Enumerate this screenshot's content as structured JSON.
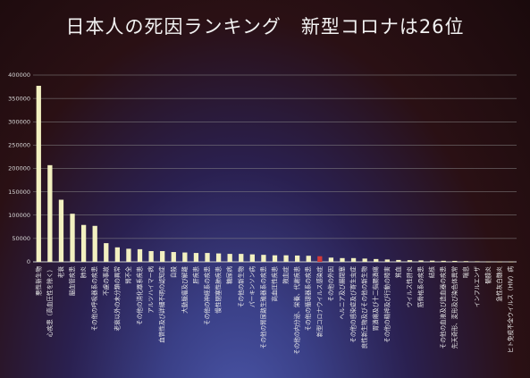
{
  "chart_data": {
    "type": "bar",
    "title": "日本人の死因ランキング　新型コロナは26位",
    "xlabel": "",
    "ylabel": "",
    "ylim": [
      0,
      400000
    ],
    "yticks": [
      0,
      50000,
      100000,
      150000,
      200000,
      250000,
      300000,
      350000,
      400000
    ],
    "grid": true,
    "legend": "none",
    "bar_color": "#f2f0c0",
    "highlight_color": "#d23a3a",
    "highlight_index": 25,
    "categories": [
      "悪性新生物",
      "心疾患（高血圧性を除く）",
      "老衰",
      "脳血管疾患",
      "肺炎",
      "その他の呼吸器系の疾患",
      "不慮の事故",
      "老衰以外の未分類の異常",
      "腎不全",
      "その他の消化器系疾患",
      "アルツハイマー病",
      "血管性及び詳細不明の認知症",
      "自殺",
      "大動脈瘤及び解離",
      "肝疾患",
      "その他の神経系の疾患",
      "慢性閉塞性肺疾患",
      "糖尿病",
      "その他の新生物",
      "パーキンソン病",
      "その他の腎尿路生殖器系の疾患",
      "高血圧性疾患",
      "敗血症",
      "その他の内分泌、栄養、代謝疾患",
      "その他の循環器系の疾患",
      "新型コロナウイルス感染症",
      "その他の外因",
      "ヘルニア及び腸閉塞",
      "その他の感染症及び寄生虫症",
      "良性新生物及びその他の新生物",
      "胃潰瘍及び十二指腸潰瘍",
      "その他の精神及び行動の障害",
      "貧血",
      "ウイルス性肝炎",
      "筋骨格系の疾患",
      "結核",
      "その他の血液及び造血器の疾患",
      "先天奇形、変形及び染色体異常",
      "喘息",
      "インフルエンザ",
      "髄膜炎",
      "急性灰白髄炎",
      "ヒト免疫不全ウイルス（HIV）病"
    ],
    "values": [
      377000,
      207000,
      133000,
      103000,
      79000,
      77000,
      40000,
      31000,
      28000,
      27000,
      23000,
      23000,
      21000,
      20000,
      19000,
      19000,
      18000,
      17000,
      17000,
      16000,
      15000,
      14000,
      14000,
      13500,
      13000,
      12000,
      9000,
      8000,
      8000,
      7000,
      6000,
      5000,
      4000,
      3500,
      3000,
      2500,
      2200,
      2000,
      1500,
      1100,
      500,
      300,
      250
    ]
  }
}
